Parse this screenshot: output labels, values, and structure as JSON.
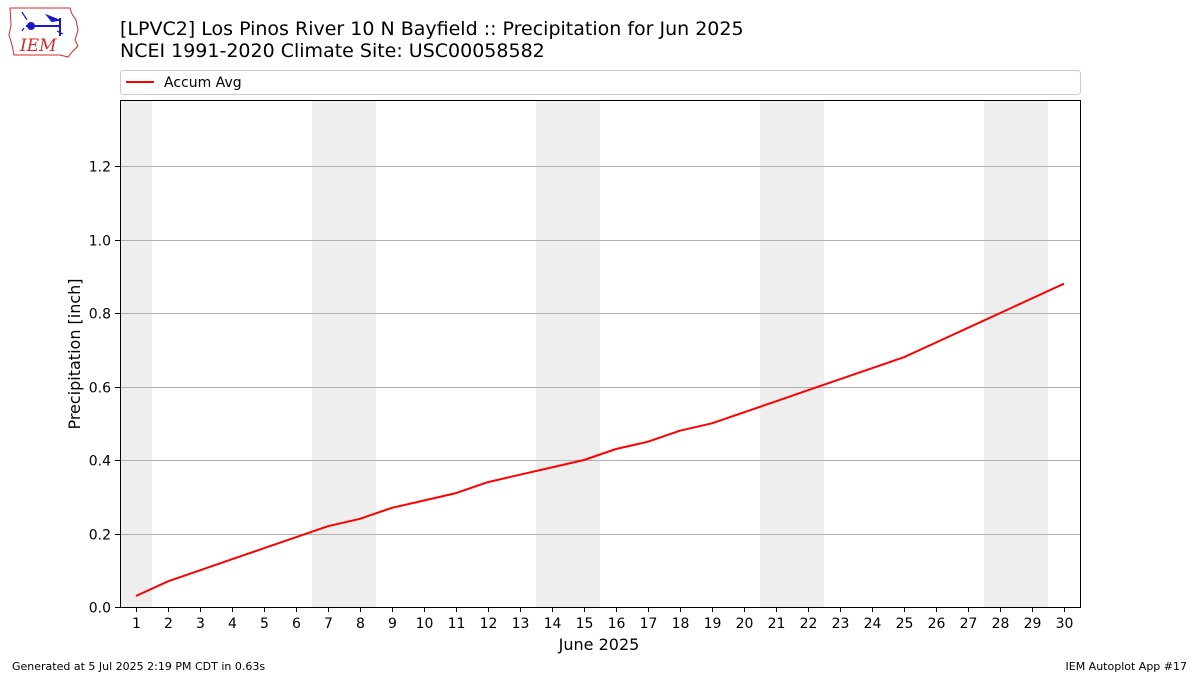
{
  "header": {
    "title_line1": "[LPVC2] Los Pinos River 10 N Bayfield :: Precipitation for Jun 2025",
    "title_line2": "NCEI 1991-2020 Climate Site: USC00058582"
  },
  "logo": {
    "text": "IEM"
  },
  "footer": {
    "generated": "Generated at 5 Jul 2025 2:19 PM CDT in 0.63s",
    "app": "IEM Autoplot App #17"
  },
  "colors": {
    "series": "#ff0000",
    "weekend_band": "#eeeeee",
    "grid": "#b0b0b0",
    "logo_red": "#d42a2a",
    "logo_blue": "#1a1acc"
  },
  "chart_data": {
    "type": "line",
    "xlabel": "June 2025",
    "ylabel": "Precipitation [inch]",
    "x": [
      1,
      2,
      3,
      4,
      5,
      6,
      7,
      8,
      9,
      10,
      11,
      12,
      13,
      14,
      15,
      16,
      17,
      18,
      19,
      20,
      21,
      22,
      23,
      24,
      25,
      26,
      27,
      28,
      29,
      30
    ],
    "xlim": [
      0.5,
      30.5
    ],
    "ylim": [
      0,
      1.38
    ],
    "yticks": [
      "0.0",
      "0.2",
      "0.4",
      "0.6",
      "0.8",
      "1.0",
      "1.2"
    ],
    "ytick_values": [
      0.0,
      0.2,
      0.4,
      0.6,
      0.8,
      1.0,
      1.2
    ],
    "xticks": [
      "1",
      "2",
      "3",
      "4",
      "5",
      "6",
      "7",
      "8",
      "9",
      "10",
      "11",
      "12",
      "13",
      "14",
      "15",
      "16",
      "17",
      "18",
      "19",
      "20",
      "21",
      "22",
      "23",
      "24",
      "25",
      "26",
      "27",
      "28",
      "29",
      "30"
    ],
    "grid": "horizontal",
    "legend_position": "top",
    "weekend_days": [
      1,
      7,
      8,
      14,
      15,
      21,
      22,
      28,
      29
    ],
    "series": [
      {
        "name": "Accum Avg",
        "color": "#ff0000",
        "values": [
          0.03,
          0.07,
          0.1,
          0.13,
          0.16,
          0.19,
          0.22,
          0.24,
          0.27,
          0.29,
          0.31,
          0.34,
          0.36,
          0.38,
          0.4,
          0.43,
          0.45,
          0.48,
          0.5,
          0.53,
          0.56,
          0.59,
          0.62,
          0.65,
          0.68,
          0.72,
          0.76,
          0.8,
          0.84,
          0.88
        ]
      }
    ]
  }
}
